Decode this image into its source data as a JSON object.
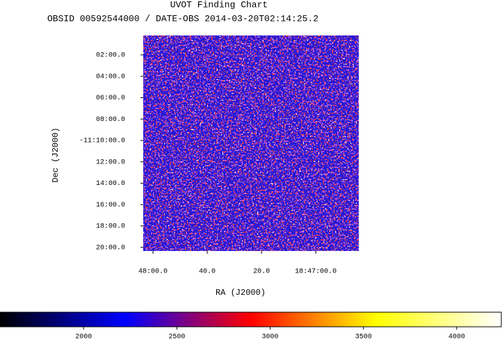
{
  "chart_data": {
    "type": "image",
    "title": "UVOT Finding Chart",
    "subtitle": "OBSID 00592544000 / DATE-OBS 2014-03-20T02:14:25.2",
    "x_label": "RA (J2000)",
    "y_label": "Dec (J2000)",
    "xlim": [
      282.015,
      281.684
    ],
    "ylim": [
      -11.339,
      -11.003
    ],
    "xticks": [
      {
        "value": 282.0,
        "label": "48:00.0"
      },
      {
        "value": 281.9167,
        "label": "40.0"
      },
      {
        "value": 281.8333,
        "label": "20.0"
      },
      {
        "value": 281.75,
        "label": "18:47:00.0"
      }
    ],
    "yticks": [
      {
        "value": -11.0333,
        "label": "02:00.0"
      },
      {
        "value": -11.0667,
        "label": "04:00.0"
      },
      {
        "value": -11.1,
        "label": "06:00.0"
      },
      {
        "value": -11.1333,
        "label": "08:00.0"
      },
      {
        "value": -11.1667,
        "label": "-11:10:00.0"
      },
      {
        "value": -11.2,
        "label": "12:00.0"
      },
      {
        "value": -11.2333,
        "label": "14:00.0"
      },
      {
        "value": -11.2667,
        "label": "16:00.0"
      },
      {
        "value": -11.3,
        "label": "18:00.0"
      },
      {
        "value": -11.3333,
        "label": "20:00.0"
      }
    ],
    "colorbar": {
      "lim": [
        1552,
        4239
      ],
      "ticks": [
        2000,
        2500,
        3000,
        3500,
        4000
      ],
      "colormap": [
        "#000000",
        "#0000ff",
        "#ff0000",
        "#ffff00",
        "#ffffff"
      ]
    }
  }
}
